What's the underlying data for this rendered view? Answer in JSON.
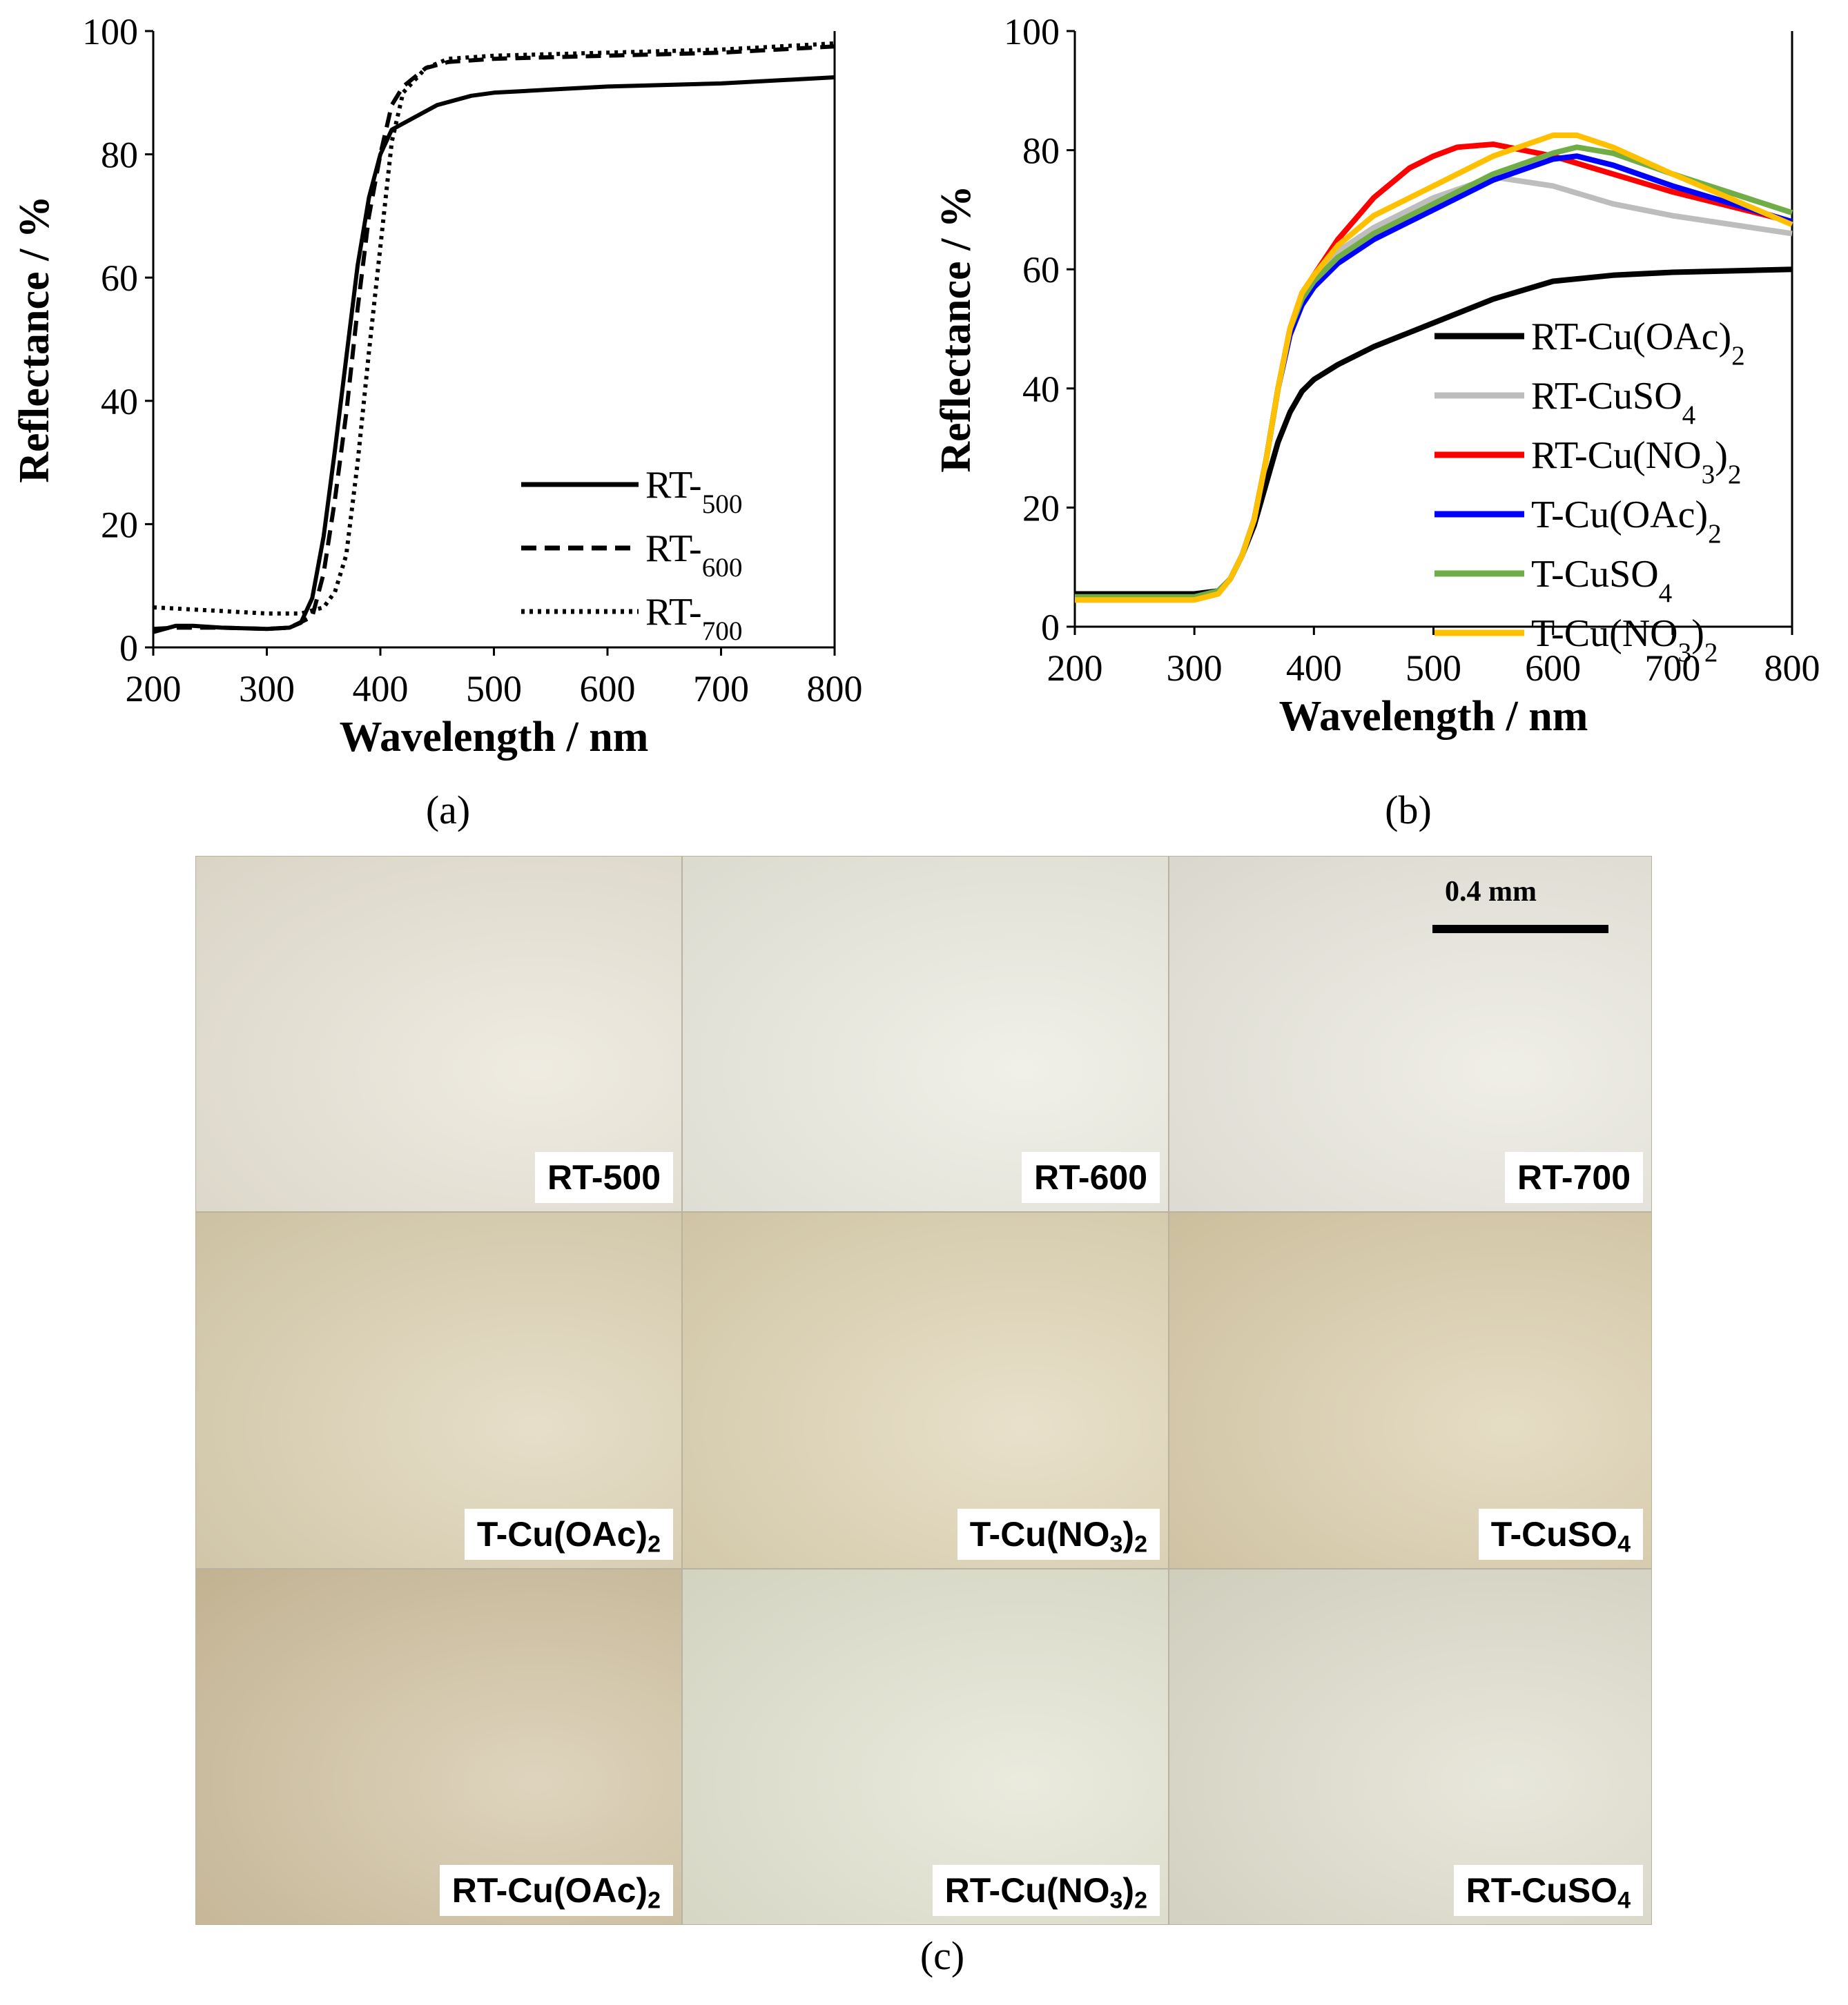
{
  "figure": {
    "caption_a": "(a)",
    "caption_b": "(b)",
    "caption_c": "(c)"
  },
  "chart_data": [
    {
      "type": "line",
      "xlabel": "Wavelength / nm",
      "ylabel": "Reflectance / %",
      "xlim": [
        200,
        800
      ],
      "ylim": [
        0,
        100
      ],
      "xticks": [
        200,
        300,
        400,
        500,
        600,
        700,
        800
      ],
      "yticks": [
        0,
        20,
        40,
        60,
        80,
        100
      ],
      "grid": false,
      "legend": "bottom-right",
      "series": [
        {
          "name": "RT-500",
          "color": "#000000",
          "dash": "solid",
          "x": [
            200,
            220,
            235,
            260,
            300,
            320,
            330,
            340,
            350,
            360,
            370,
            380,
            390,
            400,
            410,
            430,
            450,
            480,
            500,
            550,
            600,
            700,
            800
          ],
          "y": [
            2.5,
            3.5,
            3.5,
            3.2,
            3.0,
            3.2,
            4.0,
            8.0,
            18.0,
            32.0,
            47.0,
            62.0,
            73.0,
            80.0,
            84.0,
            86.0,
            88.0,
            89.5,
            90.0,
            90.5,
            91.0,
            91.5,
            92.5
          ]
        },
        {
          "name": "RT-600",
          "color": "#000000",
          "dash": "dashed",
          "x": [
            200,
            220,
            260,
            300,
            320,
            340,
            350,
            360,
            370,
            380,
            390,
            400,
            410,
            420,
            440,
            460,
            500,
            600,
            700,
            800
          ],
          "y": [
            3.0,
            3.2,
            3.2,
            3.0,
            3.2,
            5.0,
            12.0,
            24.0,
            38.0,
            55.0,
            70.0,
            80.0,
            88.0,
            91.0,
            94.0,
            95.0,
            95.5,
            96.0,
            96.5,
            97.5
          ]
        },
        {
          "name": "RT-700",
          "color": "#000000",
          "dash": "dotted",
          "x": [
            200,
            250,
            300,
            330,
            350,
            360,
            370,
            380,
            390,
            400,
            410,
            420,
            440,
            460,
            500,
            600,
            700,
            800
          ],
          "y": [
            6.5,
            6.0,
            5.5,
            5.5,
            6.5,
            9.0,
            15.0,
            30.0,
            48.0,
            65.0,
            82.0,
            90.0,
            94.0,
            95.5,
            96.0,
            96.5,
            97.0,
            98.0
          ]
        }
      ]
    },
    {
      "type": "line",
      "xlabel": "Wavelength / nm",
      "ylabel": "Reflectance / %",
      "xlim": [
        200,
        800
      ],
      "ylim": [
        0,
        100
      ],
      "xticks": [
        200,
        300,
        400,
        500,
        600,
        700,
        800
      ],
      "yticks": [
        0,
        20,
        40,
        60,
        80,
        100
      ],
      "grid": false,
      "legend": "right",
      "series": [
        {
          "name": "RT-Cu(OAc)2",
          "color": "#000000",
          "x": [
            200,
            250,
            300,
            320,
            330,
            340,
            350,
            360,
            370,
            380,
            390,
            400,
            420,
            450,
            500,
            550,
            600,
            650,
            700,
            800
          ],
          "y": [
            5.5,
            5.5,
            5.5,
            6.0,
            8.0,
            12.0,
            17.0,
            24.0,
            31.0,
            36.0,
            39.5,
            41.5,
            44.0,
            47.0,
            51.0,
            55.0,
            58.0,
            59.0,
            59.5,
            60.0
          ]
        },
        {
          "name": "RT-CuSO4",
          "color": "#bdbdbd",
          "x": [
            200,
            250,
            300,
            320,
            330,
            340,
            350,
            360,
            370,
            380,
            390,
            400,
            420,
            450,
            500,
            550,
            600,
            650,
            700,
            800
          ],
          "y": [
            5.0,
            5.0,
            5.0,
            6.0,
            8.0,
            12.0,
            18.0,
            28.0,
            40.0,
            50.0,
            56.0,
            59.0,
            63.0,
            67.0,
            72.0,
            75.5,
            74.0,
            71.0,
            69.0,
            66.0
          ]
        },
        {
          "name": "RT-Cu(NO3)2",
          "color": "#ff0000",
          "x": [
            200,
            250,
            300,
            320,
            330,
            340,
            350,
            360,
            370,
            380,
            390,
            400,
            420,
            450,
            480,
            500,
            520,
            550,
            600,
            650,
            700,
            800
          ],
          "y": [
            5.0,
            5.0,
            5.0,
            6.0,
            8.0,
            12.0,
            18.0,
            28.0,
            40.0,
            50.0,
            56.0,
            59.0,
            65.0,
            72.0,
            77.0,
            79.0,
            80.5,
            81.0,
            79.0,
            76.0,
            73.0,
            68.0
          ]
        },
        {
          "name": "T-Cu(OAc)2",
          "color": "#0000ff",
          "x": [
            200,
            250,
            300,
            320,
            330,
            340,
            350,
            360,
            370,
            380,
            390,
            400,
            420,
            450,
            500,
            550,
            600,
            620,
            650,
            700,
            800
          ],
          "y": [
            5.0,
            5.0,
            5.0,
            6.0,
            8.0,
            12.0,
            18.0,
            28.0,
            40.0,
            49.0,
            54.0,
            57.0,
            61.0,
            65.0,
            70.0,
            75.0,
            78.5,
            79.0,
            77.5,
            74.0,
            68.0
          ]
        },
        {
          "name": "T-CuSO4",
          "color": "#70ad47",
          "x": [
            200,
            250,
            300,
            320,
            330,
            340,
            350,
            360,
            370,
            380,
            390,
            400,
            420,
            450,
            500,
            550,
            600,
            620,
            650,
            700,
            800
          ],
          "y": [
            5.0,
            5.0,
            5.0,
            6.0,
            8.0,
            12.0,
            18.0,
            28.0,
            40.0,
            50.0,
            55.0,
            58.0,
            62.0,
            66.0,
            71.0,
            76.0,
            79.5,
            80.5,
            79.5,
            76.0,
            69.5
          ]
        },
        {
          "name": "T-Cu(NO3)2",
          "color": "#ffc000",
          "x": [
            200,
            250,
            300,
            320,
            330,
            340,
            350,
            360,
            370,
            380,
            390,
            400,
            420,
            450,
            500,
            550,
            600,
            620,
            650,
            700,
            800
          ],
          "y": [
            4.5,
            4.5,
            4.5,
            5.5,
            8.0,
            12.0,
            18.0,
            28.0,
            40.0,
            50.0,
            56.0,
            59.0,
            64.0,
            69.0,
            74.0,
            79.0,
            82.5,
            82.5,
            80.5,
            76.0,
            67.5
          ]
        }
      ]
    }
  ],
  "micrographs": {
    "scale_bar_label": "0.4 mm",
    "tiles": [
      {
        "label": "RT-500",
        "color": "#e6e1d2"
      },
      {
        "label": "RT-600",
        "color": "#e9e8dc"
      },
      {
        "label": "RT-700",
        "color": "#e7e5da"
      },
      {
        "label": "T-Cu(OAc)",
        "sub": "2",
        "label_end": "",
        "color": "#d9cdac"
      },
      {
        "label": "T-Cu(NO",
        "sub": "3",
        "label_end": ")",
        "sub2": "2",
        "color": "#dcd0ae"
      },
      {
        "label": "T-CuSO",
        "sub": "4",
        "label_end": "",
        "color": "#d8caa6"
      },
      {
        "label": "RT-Cu(OAc)",
        "sub": "2",
        "label_end": "",
        "color": "#cdbd9a"
      },
      {
        "label": "RT-Cu(NO",
        "sub": "3",
        "label_end": ")",
        "sub2": "2",
        "color": "#dfe0cc"
      },
      {
        "label": "RT-CuSO",
        "sub": "4",
        "label_end": "",
        "color": "#dcdac8"
      }
    ]
  }
}
